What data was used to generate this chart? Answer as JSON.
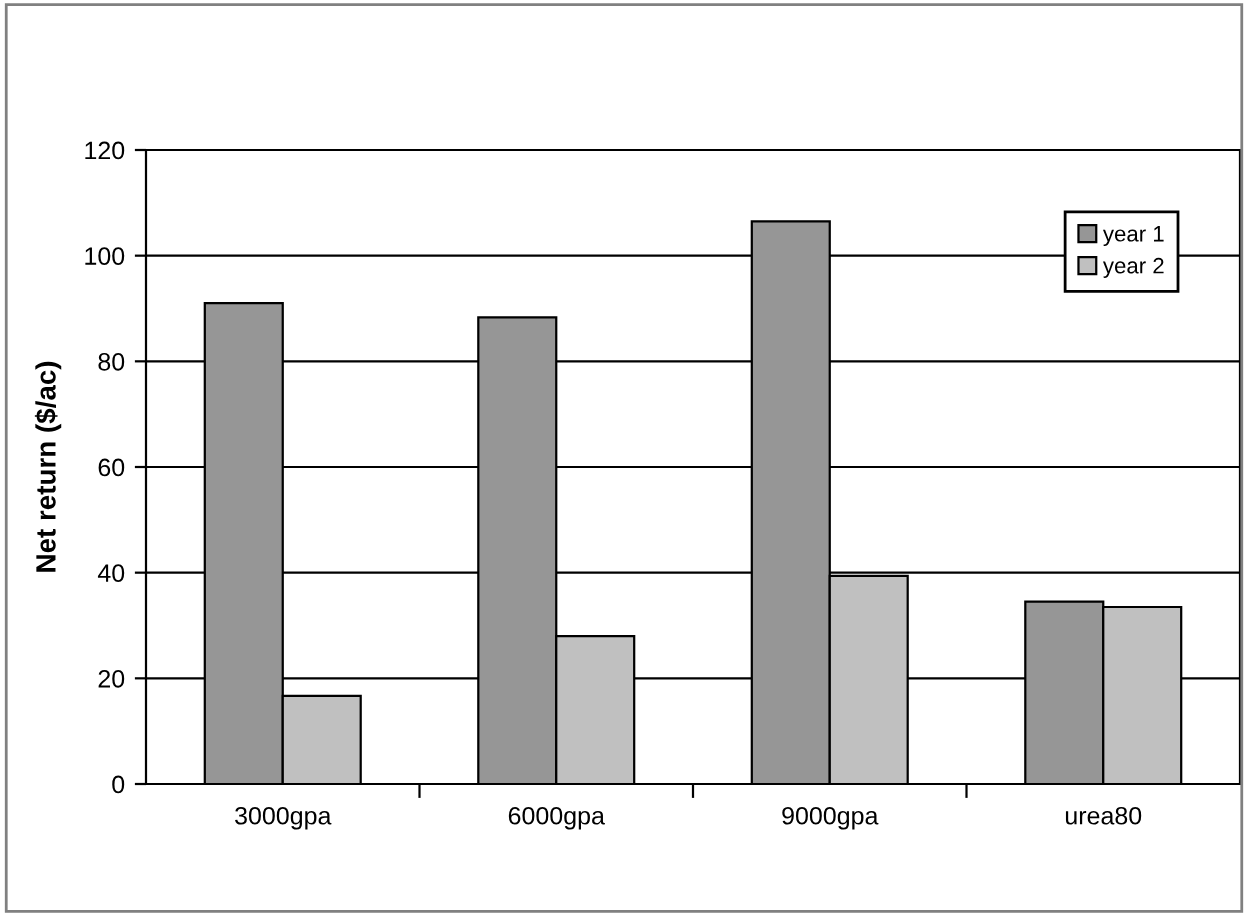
{
  "chart_data": {
    "type": "bar",
    "ylabel": "Net return ($/ac)",
    "categories": [
      "3000gpa",
      "6000gpa",
      "9000gpa",
      "urea80"
    ],
    "series": [
      {
        "name": "year 1",
        "color": "#969696",
        "values": [
          91,
          88.3,
          106.5,
          34.5
        ]
      },
      {
        "name": "year 2",
        "color": "#c0c0c0",
        "values": [
          16.7,
          28,
          39.4,
          33.5
        ]
      }
    ],
    "ylim": [
      0,
      120
    ],
    "yticks": [
      0,
      20,
      40,
      60,
      80,
      100,
      120
    ],
    "grid": "y",
    "legend": "top right"
  }
}
